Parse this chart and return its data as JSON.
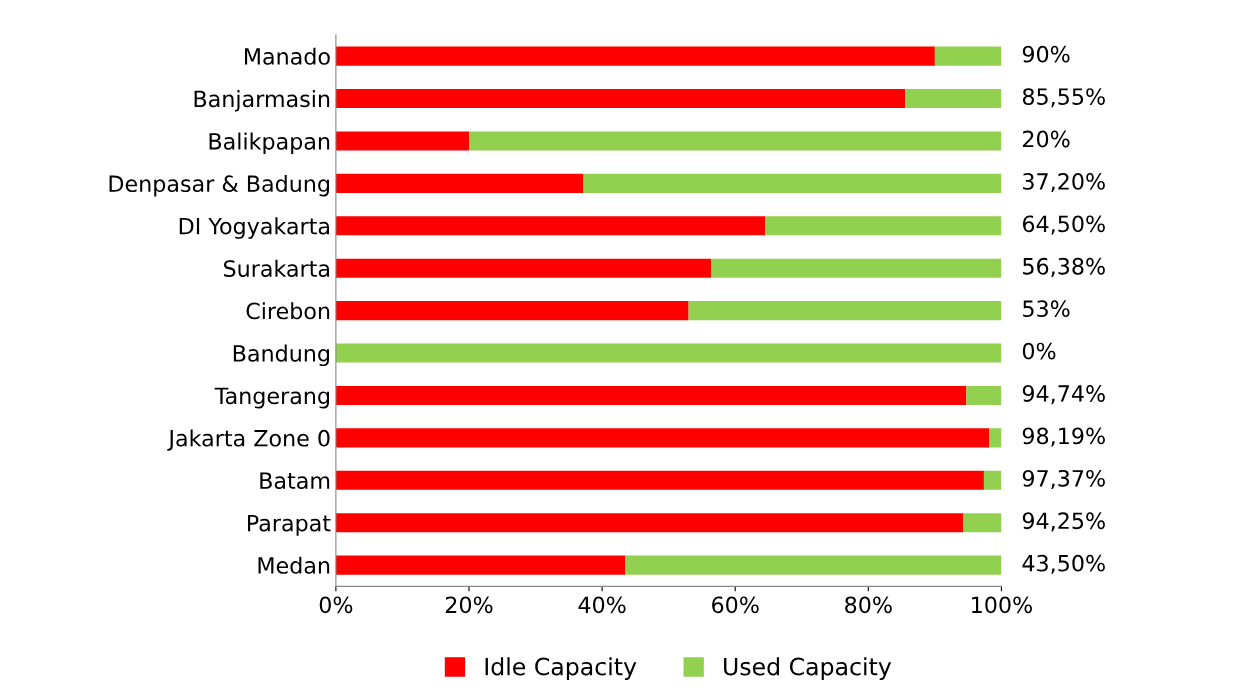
{
  "chart_data": {
    "type": "bar",
    "orientation": "horizontal",
    "stacked": true,
    "categories": [
      "Manado",
      "Banjarmasin",
      "Balikpapan",
      "Denpasar & Badung",
      "DI Yogyakarta",
      "Surakarta",
      "Cirebon",
      "Bandung",
      "Tangerang",
      "Jakarta Zone 0",
      "Batam",
      "Parapat",
      "Medan"
    ],
    "series": [
      {
        "name": "Idle Capacity",
        "color": "#ff0000",
        "values": [
          90,
          85.55,
          20,
          37.2,
          64.5,
          56.38,
          53,
          0,
          94.74,
          98.19,
          97.37,
          94.25,
          43.5
        ]
      },
      {
        "name": "Used Capacity",
        "color": "#92d050",
        "values": [
          10,
          14.45,
          80,
          62.8,
          35.5,
          43.62,
          47,
          100,
          5.26,
          1.81,
          2.63,
          5.75,
          56.5
        ]
      }
    ],
    "xlim": [
      0,
      100
    ],
    "xticks": [
      {
        "value": 0,
        "label": "0%"
      },
      {
        "value": 20,
        "label": "20%"
      },
      {
        "value": 40,
        "label": "40%"
      },
      {
        "value": 60,
        "label": "60%"
      },
      {
        "value": 80,
        "label": "80%"
      },
      {
        "value": 100,
        "label": "100%"
      }
    ],
    "grid": false,
    "legend": "bottom",
    "annotations": [
      "90%",
      "85,55%",
      "20%",
      "37,20%",
      "64,50%",
      "56,38%",
      "53%",
      "0%",
      "94,74%",
      "98,19%",
      "97,37%",
      "94,25%",
      "43,50%"
    ]
  }
}
